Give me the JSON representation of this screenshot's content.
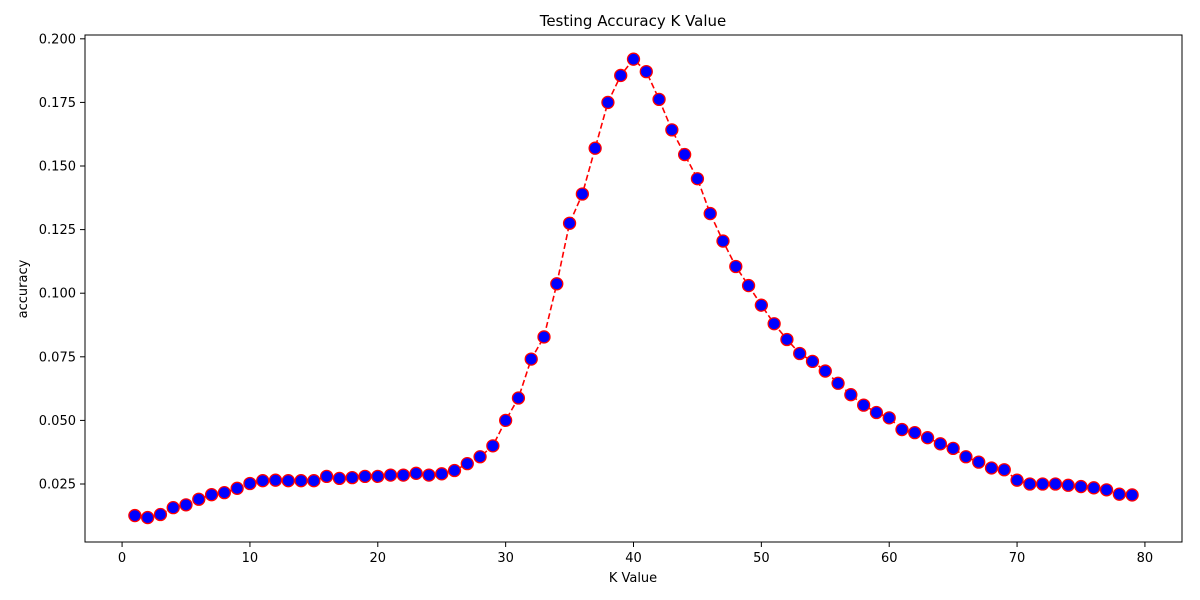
{
  "chart_data": {
    "type": "line",
    "title": "Testing Accuracy K Value",
    "xlabel": "K Value",
    "ylabel": "accuracy",
    "xlim": [
      -2.9,
      82.9
    ],
    "ylim": [
      0.0022,
      0.2015
    ],
    "xticks": [
      0,
      10,
      20,
      30,
      40,
      50,
      60,
      70,
      80
    ],
    "yticks": [
      0.025,
      0.05,
      0.075,
      0.1,
      0.125,
      0.15,
      0.175,
      0.2
    ],
    "xtick_labels": [
      "0",
      "10",
      "20",
      "30",
      "40",
      "50",
      "60",
      "70",
      "80"
    ],
    "ytick_labels": [
      "0.025",
      "0.050",
      "0.075",
      "0.100",
      "0.125",
      "0.150",
      "0.175",
      "0.200"
    ],
    "grid": false,
    "series": [
      {
        "line_color": "#ff0000",
        "line_style": "dashed",
        "marker": "circle",
        "marker_face_color": "#0000ff",
        "marker_edge_color": "#ff0000",
        "x": [
          1,
          2,
          3,
          4,
          5,
          6,
          7,
          8,
          9,
          10,
          11,
          12,
          13,
          14,
          15,
          16,
          17,
          18,
          19,
          20,
          21,
          22,
          23,
          24,
          25,
          26,
          27,
          28,
          29,
          30,
          31,
          32,
          33,
          34,
          35,
          36,
          37,
          38,
          39,
          40,
          41,
          42,
          43,
          44,
          45,
          46,
          47,
          48,
          49,
          50,
          51,
          52,
          53,
          54,
          55,
          56,
          57,
          58,
          59,
          60,
          61,
          62,
          63,
          64,
          65,
          66,
          67,
          68,
          69,
          70,
          71,
          72,
          73,
          74,
          75,
          76,
          77,
          78,
          79
        ],
        "y": [
          0.0126,
          0.0118,
          0.013,
          0.0157,
          0.0168,
          0.019,
          0.0208,
          0.0216,
          0.0233,
          0.0252,
          0.0263,
          0.0265,
          0.0263,
          0.0263,
          0.0263,
          0.028,
          0.0272,
          0.0275,
          0.028,
          0.028,
          0.0285,
          0.0285,
          0.0292,
          0.0285,
          0.029,
          0.0303,
          0.033,
          0.0357,
          0.04,
          0.05,
          0.0588,
          0.0741,
          0.0828,
          0.1037,
          0.1275,
          0.139,
          0.157,
          0.175,
          0.1856,
          0.192,
          0.1871,
          0.1762,
          0.1642,
          0.1545,
          0.145,
          0.1313,
          0.1205,
          0.1105,
          0.103,
          0.0953,
          0.088,
          0.0818,
          0.0763,
          0.0732,
          0.0694,
          0.0646,
          0.0601,
          0.056,
          0.0531,
          0.051,
          0.0464,
          0.0452,
          0.0432,
          0.0408,
          0.039,
          0.0357,
          0.0336,
          0.0313,
          0.0306,
          0.0265,
          0.025,
          0.025,
          0.025,
          0.0245,
          0.024,
          0.0235,
          0.0227,
          0.021,
          0.0207
        ]
      }
    ]
  }
}
